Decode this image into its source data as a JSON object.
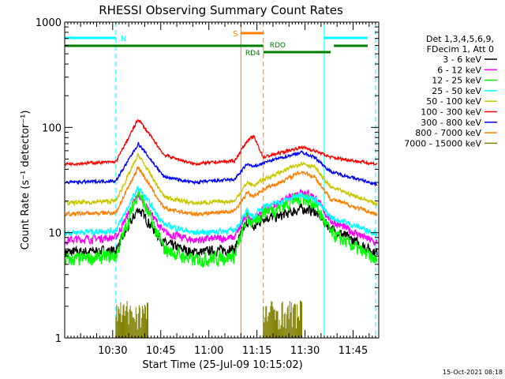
{
  "chart_data": {
    "type": "line",
    "title": "RHESSI Observing Summary Count Rates",
    "xlabel": "Start Time (25-Jul-09 10:15:02)",
    "ylabel": "Count Rate (s⁻¹ detector⁻¹)",
    "y_scale": "log",
    "ylim": [
      1,
      1000
    ],
    "xlim": [
      "10:15:02",
      "11:53:00"
    ],
    "x_ticks": [
      "10:30",
      "10:45",
      "11:00",
      "11:15",
      "11:30",
      "11:45"
    ],
    "y_ticks": [
      "1",
      "10",
      "100",
      "1000"
    ],
    "legend": {
      "placement": "right",
      "header": [
        "Det 1,3,4,5,6,9,",
        "FDecim 1, Att 0"
      ]
    },
    "series": [
      {
        "name": "3 - 6 keV",
        "color": "#000000",
        "x": [
          "10:15",
          "10:31",
          "10:38",
          "10:46",
          "10:55",
          "11:08",
          "11:12",
          "11:14",
          "11:17",
          "11:21",
          "11:29",
          "11:33",
          "11:38",
          "11:52"
        ],
        "values": [
          6.5,
          6.8,
          17,
          8,
          6.5,
          7,
          13,
          11,
          14,
          14,
          17,
          16,
          11,
          6.5
        ]
      },
      {
        "name": "6 - 12 keV",
        "color": "#ff00ff",
        "x": [
          "10:15",
          "10:31",
          "10:38",
          "10:46",
          "10:55",
          "11:08",
          "11:12",
          "11:14",
          "11:17",
          "11:21",
          "11:29",
          "11:33",
          "11:38",
          "11:52"
        ],
        "values": [
          8.5,
          9,
          23,
          10,
          8.5,
          9,
          15,
          13,
          17,
          18,
          25,
          22,
          13,
          8
        ]
      },
      {
        "name": "12 - 25 keV",
        "color": "#00ff00",
        "x": [
          "10:15",
          "10:31",
          "10:38",
          "10:46",
          "10:55",
          "11:08",
          "11:12",
          "11:14",
          "11:17",
          "11:21",
          "11:29",
          "11:33",
          "11:38",
          "11:52"
        ],
        "values": [
          5.5,
          6,
          25,
          7,
          5.5,
          6,
          14,
          12,
          16,
          17,
          22,
          19,
          10,
          5.5
        ]
      },
      {
        "name": "25 - 50 keV",
        "color": "#00ffff",
        "x": [
          "10:15",
          "10:31",
          "10:38",
          "10:46",
          "10:55",
          "11:08",
          "11:12",
          "11:14",
          "11:17",
          "11:21",
          "11:29",
          "11:33",
          "11:38",
          "11:52"
        ],
        "values": [
          10,
          10.5,
          27,
          12,
          10,
          10.5,
          16,
          14,
          18,
          19,
          23,
          21,
          14,
          10
        ]
      },
      {
        "name": "50 - 100 keV",
        "color": "#c8c800",
        "x": [
          "10:15",
          "10:31",
          "10:38",
          "10:46",
          "10:55",
          "11:08",
          "11:12",
          "11:14",
          "11:17",
          "11:21",
          "11:29",
          "11:33",
          "11:38",
          "11:52"
        ],
        "values": [
          19,
          20,
          55,
          22,
          19,
          20,
          30,
          28,
          32,
          36,
          46,
          42,
          27,
          19
        ]
      },
      {
        "name": "100 - 300 keV",
        "color": "#ff0000",
        "x": [
          "10:15",
          "10:31",
          "10:38",
          "10:46",
          "10:55",
          "11:08",
          "11:12",
          "11:14",
          "11:17",
          "11:21",
          "11:29",
          "11:33",
          "11:38",
          "11:52"
        ],
        "values": [
          45,
          47,
          120,
          55,
          45,
          48,
          75,
          82,
          52,
          56,
          65,
          60,
          52,
          45
        ]
      },
      {
        "name": "300 - 800 keV",
        "color": "#0000ff",
        "x": [
          "10:15",
          "10:31",
          "10:38",
          "10:46",
          "10:55",
          "11:08",
          "11:12",
          "11:14",
          "11:17",
          "11:21",
          "11:29",
          "11:33",
          "11:38",
          "11:52"
        ],
        "values": [
          30,
          31,
          70,
          34,
          30,
          32,
          45,
          42,
          46,
          50,
          58,
          52,
          38,
          29
        ]
      },
      {
        "name": "800 - 7000 keV",
        "color": "#ff8000",
        "x": [
          "10:15",
          "10:31",
          "10:38",
          "10:46",
          "10:55",
          "11:08",
          "11:12",
          "11:14",
          "11:17",
          "11:21",
          "11:29",
          "11:33",
          "11:38",
          "11:52"
        ],
        "values": [
          15,
          15.5,
          42,
          17,
          15,
          16,
          24,
          22,
          26,
          29,
          38,
          34,
          21,
          15
        ]
      },
      {
        "name": "7000 - 15000 keV",
        "color": "#808000",
        "x": [
          "10:31",
          "10:41",
          "11:17",
          "11:29"
        ],
        "values": [
          2.2,
          2.2,
          2.2,
          2.2
        ]
      }
    ],
    "annotations": [
      {
        "label": "N",
        "color": "#00ffff"
      },
      {
        "label": "S",
        "color": "#ff8000"
      },
      {
        "label": "RD4",
        "color": "#008000"
      },
      {
        "label": "RDO",
        "color": "#008000"
      }
    ],
    "footer_timestamp": "15-Oct-2021 08:18"
  }
}
